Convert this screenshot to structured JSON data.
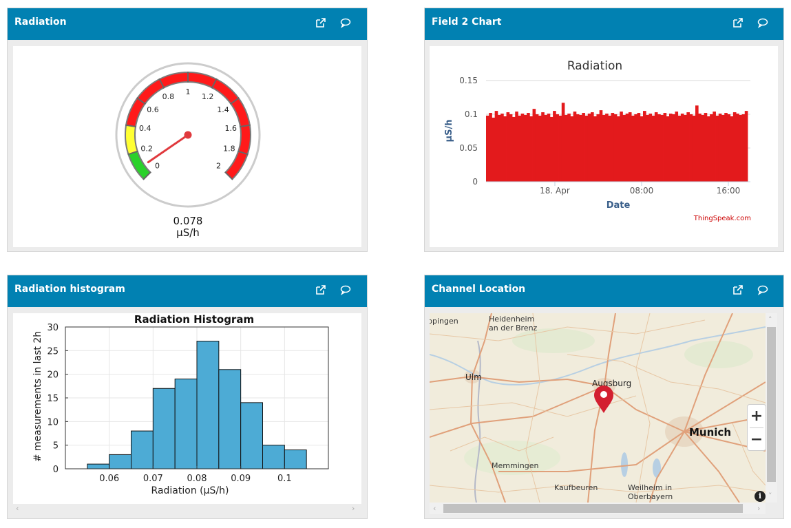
{
  "panels": {
    "radiation": {
      "title": "Radiation",
      "gauge": {
        "min": 0,
        "max": 2,
        "value": 0.078,
        "value_label": "0.078",
        "unit": "µS/h",
        "tick_labels": [
          "0",
          "0.2",
          "0.4",
          "0.6",
          "0.8",
          "1",
          "1.2",
          "1.4",
          "1.6",
          "1.8",
          "2"
        ],
        "bands": [
          {
            "from": 0,
            "to": 0.2,
            "color": "#2bd12b"
          },
          {
            "from": 0.2,
            "to": 0.4,
            "color": "#ffff33"
          },
          {
            "from": 0.4,
            "to": 2,
            "color": "#ff1a1a"
          }
        ]
      }
    },
    "field2": {
      "title": "Field 2 Chart",
      "credit": "ThingSpeak.com"
    },
    "histogram": {
      "title": "Radiation histogram"
    },
    "location": {
      "title": "Channel Location",
      "map_labels": {
        "giengen": "ppingen",
        "heidenheim_1": "Heidenheim",
        "heidenheim_2": "an der Brenz",
        "ulm": "Ulm",
        "augsburg": "Augsburg",
        "munich": "Munich",
        "memmingen": "Memmingen",
        "kaufbeuren": "Kaufbeuren",
        "weilheim_1": "Weilheim in",
        "weilheim_2": "Oberbayern"
      },
      "zoom_in": "+",
      "zoom_out": "−",
      "info": "i"
    }
  },
  "colors": {
    "header": "#0181b2",
    "chart_red": "#e31a1c",
    "histogram_bar": "#4dabd5"
  },
  "chart_data": [
    {
      "type": "bar",
      "title": "Radiation",
      "xlabel": "Date",
      "ylabel": "µS/h",
      "ylim": [
        0,
        0.15
      ],
      "yticks": [
        0,
        0.05,
        0.1,
        0.15
      ],
      "xtick_labels": [
        "18. Apr",
        "08:00",
        "16:00"
      ],
      "series": [
        {
          "values": [
            0.098,
            0.102,
            0.095,
            0.105,
            0.099,
            0.101,
            0.097,
            0.103,
            0.1,
            0.096,
            0.104,
            0.098,
            0.101,
            0.099,
            0.102,
            0.097,
            0.108,
            0.1,
            0.098,
            0.103,
            0.099,
            0.101,
            0.096,
            0.105,
            0.1,
            0.098,
            0.117,
            0.099,
            0.101,
            0.097,
            0.104,
            0.1,
            0.099,
            0.102,
            0.098,
            0.101,
            0.103,
            0.097,
            0.1,
            0.106,
            0.099,
            0.101,
            0.098,
            0.102,
            0.1,
            0.097,
            0.104,
            0.099,
            0.101,
            0.103,
            0.098,
            0.1,
            0.102,
            0.097,
            0.105,
            0.099,
            0.101,
            0.098,
            0.103,
            0.1,
            0.099,
            0.102,
            0.097,
            0.101,
            0.1,
            0.104,
            0.098,
            0.101,
            0.099,
            0.103,
            0.1,
            0.098,
            0.113,
            0.101,
            0.099,
            0.102,
            0.097,
            0.1,
            0.104,
            0.098,
            0.101,
            0.099,
            0.102,
            0.1,
            0.097,
            0.103,
            0.101,
            0.099,
            0.1,
            0.105
          ]
        }
      ]
    },
    {
      "type": "bar",
      "title": "Radiation Histogram",
      "xlabel": "Radiation (µS/h)",
      "ylabel": "# measurements in last 2h",
      "xlim": [
        0.05,
        0.11
      ],
      "ylim": [
        0,
        30
      ],
      "xticks": [
        0.06,
        0.07,
        0.08,
        0.09,
        0.1
      ],
      "xtick_labels": [
        "0.06",
        "0.07",
        "0.08",
        "0.09",
        "0.1"
      ],
      "yticks": [
        0,
        5,
        10,
        15,
        20,
        25,
        30
      ],
      "bins": [
        {
          "x0": 0.055,
          "x1": 0.06,
          "count": 1
        },
        {
          "x0": 0.06,
          "x1": 0.065,
          "count": 3
        },
        {
          "x0": 0.065,
          "x1": 0.07,
          "count": 8
        },
        {
          "x0": 0.07,
          "x1": 0.075,
          "count": 17
        },
        {
          "x0": 0.075,
          "x1": 0.08,
          "count": 19
        },
        {
          "x0": 0.08,
          "x1": 0.085,
          "count": 27
        },
        {
          "x0": 0.085,
          "x1": 0.09,
          "count": 21
        },
        {
          "x0": 0.09,
          "x1": 0.095,
          "count": 14
        },
        {
          "x0": 0.095,
          "x1": 0.1,
          "count": 5
        },
        {
          "x0": 0.1,
          "x1": 0.105,
          "count": 4
        }
      ]
    }
  ]
}
